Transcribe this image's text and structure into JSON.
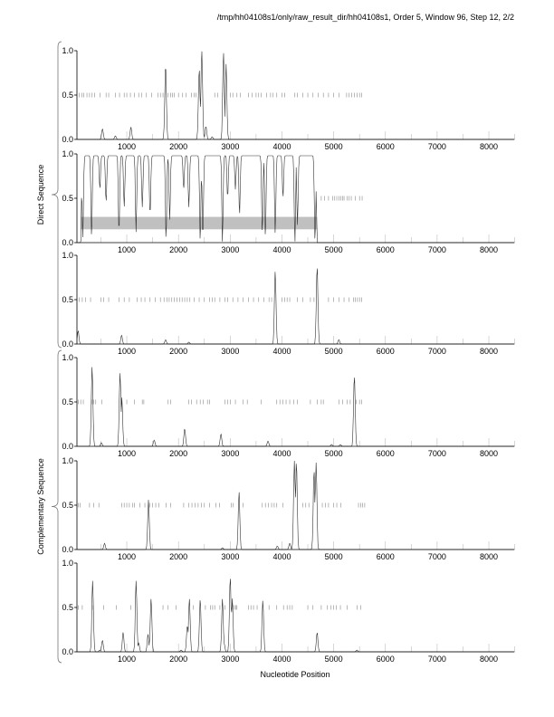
{
  "chart_data": {
    "type": "line",
    "title": "/tmp/hh04108s1/only/raw_result_dir/hh04108s1, Order 5, Window 96, Step 12, 2/2",
    "xlabel": "Nucleotide Position",
    "xlim": [
      40,
      8500
    ],
    "ylim": [
      0,
      1
    ],
    "x_ticks": [
      "1000",
      "2000",
      "3000",
      "4000",
      "5000",
      "6000",
      "7000",
      "8000"
    ],
    "x_tick_values": [
      1000,
      2000,
      3000,
      4000,
      5000,
      6000,
      7000,
      8000
    ],
    "y_ticks": [
      "0.0",
      "0.5",
      "1.0"
    ],
    "y_tick_values": [
      0,
      0.5,
      1
    ],
    "groups": [
      {
        "label": "Direct Sequence",
        "panels": [
          0,
          1,
          2
        ]
      },
      {
        "label": "Complementary Sequence",
        "panels": [
          3,
          4,
          5
        ]
      }
    ],
    "panels": [
      {
        "name": "direct-frame-1",
        "mode": "peaks",
        "peaks": [
          [
            530,
            0.12
          ],
          [
            780,
            0.04
          ],
          [
            1080,
            0.14
          ],
          [
            1750,
            0.85
          ],
          [
            2400,
            0.8
          ],
          [
            2450,
            1.0
          ],
          [
            2530,
            0.15
          ],
          [
            2650,
            0.03
          ],
          [
            2870,
            0.98
          ],
          [
            2920,
            0.85
          ]
        ],
        "stops": [
          80,
          130,
          170,
          230,
          280,
          330,
          380,
          480,
          600,
          650,
          780,
          860,
          950,
          1000,
          1070,
          1150,
          1230,
          1290,
          1380,
          1480,
          1600,
          1650,
          1700,
          1800,
          1850,
          1880,
          1920,
          2000,
          2080,
          2150,
          2250,
          2300,
          2340,
          2700,
          2760,
          2850,
          3000,
          3050,
          3130,
          3200,
          3350,
          3420,
          3500,
          3550,
          3600,
          3700,
          3780,
          3830,
          3900,
          4000,
          4050,
          4250,
          4300,
          4400,
          4500,
          4600,
          4700,
          4800,
          4900,
          5000,
          5100,
          5250,
          5300,
          5350,
          5400,
          5450,
          5500,
          5540
        ]
      },
      {
        "name": "direct-frame-2",
        "mode": "dips",
        "start": 110,
        "end": 4680,
        "dips": [
          [
            150,
            0.05
          ],
          [
            320,
            0.05
          ],
          [
            480,
            0.6
          ],
          [
            600,
            0.45
          ],
          [
            850,
            0.1
          ],
          [
            950,
            0.4
          ],
          [
            1180,
            0.12
          ],
          [
            1300,
            0.4
          ],
          [
            1450,
            0.3
          ],
          [
            1760,
            0.02
          ],
          [
            1830,
            0.25
          ],
          [
            2100,
            0.6
          ],
          [
            2200,
            0.4
          ],
          [
            2420,
            0.0
          ],
          [
            2470,
            0.05
          ],
          [
            2850,
            0.0
          ],
          [
            2950,
            0.5
          ],
          [
            3100,
            0.6
          ],
          [
            3180,
            0.3
          ],
          [
            3620,
            0.1
          ],
          [
            3680,
            0.05
          ],
          [
            3870,
            0.1
          ],
          [
            4020,
            0.5
          ],
          [
            4250,
            0.0
          ],
          [
            4300,
            0.2
          ],
          [
            4640,
            0.0
          ]
        ],
        "band": [
          110,
          4680,
          0.15,
          0.29
        ],
        "stops": [
          4760,
          4820,
          4900,
          4980,
          5020,
          5060,
          5100,
          5140,
          5170,
          5200,
          5260,
          5300,
          5340,
          5420,
          5500,
          5550
        ]
      },
      {
        "name": "direct-frame-3",
        "mode": "peaks",
        "peaks": [
          [
            60,
            0.15
          ],
          [
            900,
            0.1
          ],
          [
            1750,
            0.05
          ],
          [
            2200,
            0.02
          ],
          [
            3870,
            0.82
          ],
          [
            4680,
            0.88
          ],
          [
            5100,
            0.05
          ]
        ],
        "stops": [
          80,
          140,
          200,
          300,
          500,
          550,
          650,
          850,
          950,
          1050,
          1200,
          1280,
          1350,
          1450,
          1550,
          1650,
          1720,
          1780,
          1820,
          1870,
          1920,
          1970,
          2020,
          2070,
          2120,
          2170,
          2220,
          2300,
          2400,
          2500,
          2600,
          2650,
          2700,
          2800,
          2900,
          2950,
          3050,
          3150,
          3250,
          3350,
          3450,
          3550,
          3650,
          3750,
          3800,
          4000,
          4050,
          4100,
          4150,
          4300,
          4400,
          4550,
          4620,
          4900,
          5000,
          5100,
          5200,
          5300,
          5380,
          5420,
          5460,
          5500,
          5540
        ]
      },
      {
        "name": "complementary-frame-1",
        "mode": "peaks",
        "peaks": [
          [
            330,
            0.9
          ],
          [
            510,
            0.04
          ],
          [
            870,
            0.83
          ],
          [
            905,
            0.55
          ],
          [
            1530,
            0.07
          ],
          [
            2120,
            0.2
          ],
          [
            2820,
            0.14
          ],
          [
            3730,
            0.06
          ],
          [
            4960,
            0.02
          ],
          [
            5130,
            0.02
          ],
          [
            5400,
            0.8
          ]
        ],
        "stops": [
          60,
          110,
          160,
          320,
          360,
          400,
          520,
          900,
          1000,
          1150,
          1300,
          1330,
          1800,
          1850,
          2200,
          2250,
          2350,
          2420,
          2480,
          2560,
          2600,
          2900,
          2950,
          3000,
          3100,
          3250,
          3330,
          3600,
          3900,
          3960,
          4020,
          4080,
          4150,
          4230,
          4300,
          4550,
          4680,
          4760,
          4800,
          5100,
          5170,
          5260,
          5320,
          5440,
          5500,
          5540
        ]
      },
      {
        "name": "complementary-frame-2",
        "mode": "peaks",
        "peaks": [
          [
            570,
            0.07
          ],
          [
            1420,
            0.56
          ],
          [
            2850,
            0.02
          ],
          [
            3170,
            0.65
          ],
          [
            3910,
            0.04
          ],
          [
            4150,
            0.07
          ],
          [
            4240,
            1.0
          ],
          [
            4280,
            1.0
          ],
          [
            4620,
            0.9
          ],
          [
            4660,
            0.98
          ]
        ],
        "stops": [
          60,
          100,
          280,
          360,
          460,
          900,
          950,
          1000,
          1050,
          1110,
          1150,
          1250,
          1350,
          1450,
          1500,
          1560,
          1620,
          1760,
          1850,
          2100,
          2200,
          2260,
          2320,
          2380,
          2440,
          2500,
          2600,
          2720,
          2790,
          3020,
          3060,
          3250,
          3620,
          3680,
          3740,
          3800,
          3850,
          3900,
          4020,
          4400,
          4460,
          4520,
          4780,
          4840,
          4900,
          5000,
          5060,
          5140,
          5480,
          5520,
          5560,
          5600
        ]
      },
      {
        "name": "complementary-frame-3",
        "mode": "peaks",
        "peaks": [
          [
            340,
            0.8
          ],
          [
            480,
            0.02
          ],
          [
            530,
            0.13
          ],
          [
            930,
            0.22
          ],
          [
            1180,
            0.8
          ],
          [
            1230,
            0.1
          ],
          [
            1410,
            0.2
          ],
          [
            1470,
            0.6
          ],
          [
            2050,
            0.02
          ],
          [
            2170,
            0.3
          ],
          [
            2210,
            0.6
          ],
          [
            2420,
            0.6
          ],
          [
            2850,
            0.6
          ],
          [
            2880,
            0.1
          ],
          [
            3000,
            0.85
          ],
          [
            3040,
            0.6
          ],
          [
            3630,
            0.58
          ],
          [
            4680,
            0.22
          ],
          [
            5450,
            0.02
          ]
        ],
        "stops": [
          60,
          140,
          350,
          550,
          800,
          1080,
          1700,
          1800,
          1950,
          2290,
          2520,
          2620,
          2660,
          2700,
          2800,
          2900,
          3050,
          3080,
          3110,
          3130,
          3350,
          3400,
          3450,
          3520,
          3750,
          3900,
          4030,
          4100,
          4150,
          4200,
          4500,
          4600,
          4760,
          4880,
          4950,
          5000,
          5050,
          5130,
          5260,
          5450,
          5520
        ]
      }
    ]
  }
}
